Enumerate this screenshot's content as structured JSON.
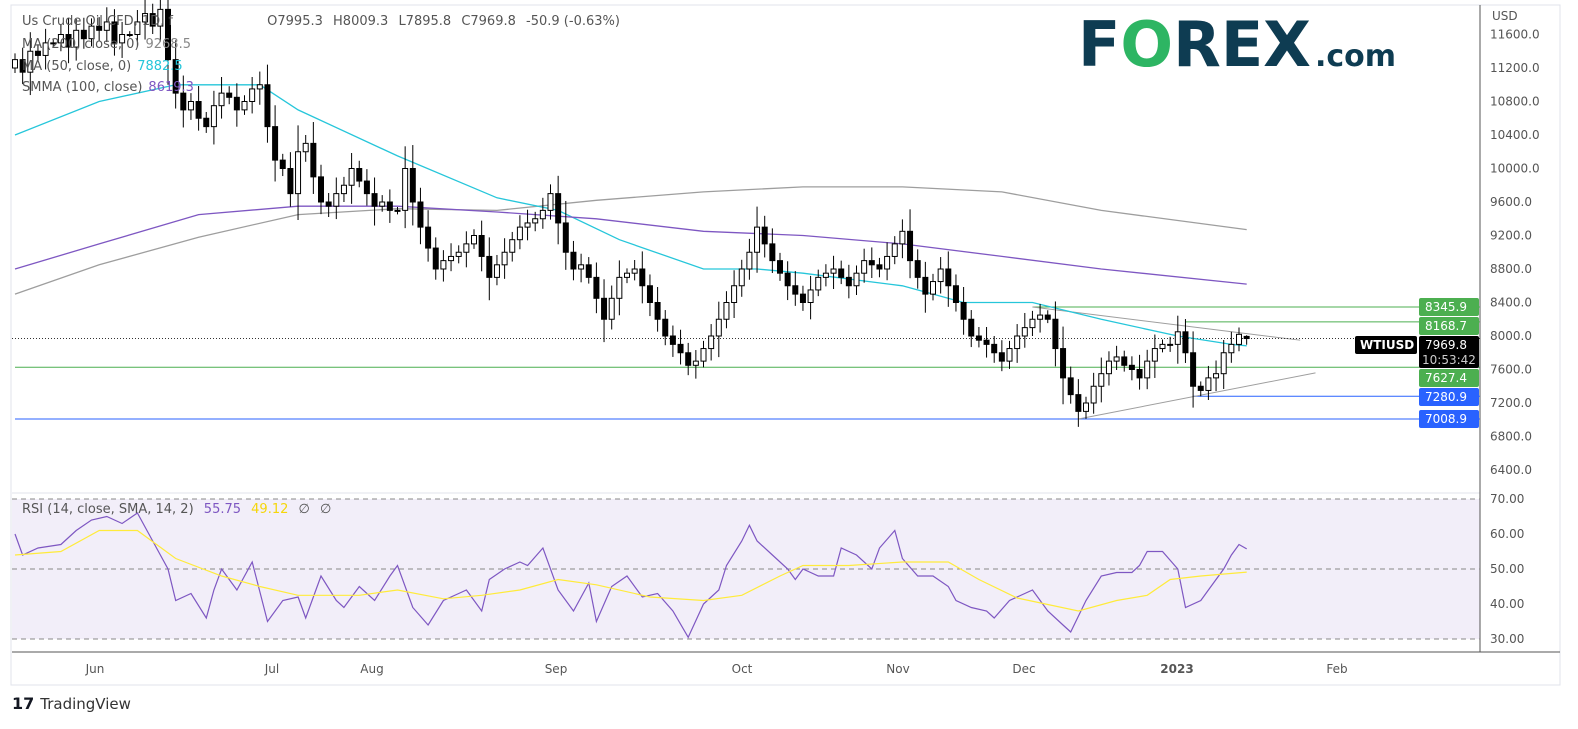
{
  "chart_data": {
    "type": "candlestick",
    "symbol_title": "Us Crude Oil CFD, 1D, f",
    "ohlc_last": {
      "open": "O7995.3",
      "high": "H8009.3",
      "low": "L7895.8",
      "close": "C7969.8",
      "change": "-50.9 (-0.63%)"
    },
    "last_ohlc_values": {
      "open": 7995.3,
      "high": 8009.3,
      "low": 7895.8,
      "close": 7969.8
    },
    "closes": [
      11300,
      11150,
      11400,
      11350,
      11500,
      11500,
      11600,
      11450,
      11650,
      11550,
      11700,
      11650,
      11750,
      11500,
      11600,
      11600,
      11750,
      11850,
      11700,
      11900,
      11300,
      10900,
      10700,
      10800,
      10600,
      10500,
      10750,
      10900,
      10850,
      10700,
      10800,
      10950,
      11000,
      10500,
      10100,
      10000,
      9700,
      10200,
      10300,
      9900,
      9600,
      9550,
      9700,
      9800,
      10000,
      9850,
      9700,
      9550,
      9600,
      9500,
      9500,
      10000,
      9600,
      9300,
      9050,
      8800,
      8900,
      8950,
      9000,
      9100,
      9200,
      8950,
      8700,
      8850,
      9000,
      9150,
      9300,
      9350,
      9400,
      9500,
      9700,
      9350,
      9000,
      8800,
      8850,
      8700,
      8450,
      8200,
      8450,
      8700,
      8750,
      8800,
      8600,
      8400,
      8200,
      8000,
      7900,
      7800,
      7650,
      7700,
      7850,
      8000,
      8200,
      8400,
      8600,
      8800,
      9000,
      9300,
      9100,
      8900,
      8750,
      8600,
      8500,
      8400,
      8550,
      8700,
      8750,
      8800,
      8700,
      8600,
      8750,
      8900,
      8850,
      8800,
      8950,
      9100,
      9250,
      8900,
      8700,
      8500,
      8650,
      8800,
      8600,
      8400,
      8200,
      8000,
      7950,
      7900,
      7800,
      7700,
      7850,
      8000,
      8100,
      8200,
      8250,
      8200,
      7850,
      7500,
      7300,
      7100,
      7200,
      7400,
      7550,
      7700,
      7750,
      7650,
      7600,
      7500,
      7700,
      7850,
      7900,
      7900,
      8050,
      7800,
      7400,
      7350,
      7500,
      7550,
      7800,
      7900,
      8020,
      7970
    ],
    "moving_averages": [
      {
        "name": "MA (200, close, 0)",
        "value": "9268.5",
        "color": "#9e9e9e",
        "points": [
          [
            0,
            8500
          ],
          [
            11,
            8850
          ],
          [
            24,
            9180
          ],
          [
            37,
            9450
          ],
          [
            50,
            9520
          ],
          [
            63,
            9500
          ],
          [
            76,
            9620
          ],
          [
            90,
            9720
          ],
          [
            103,
            9780
          ],
          [
            116,
            9780
          ],
          [
            129,
            9720
          ],
          [
            142,
            9500
          ],
          [
            161,
            9270
          ]
        ]
      },
      {
        "name": "MA (50, close, 0)",
        "value": "7882.5",
        "color": "#26c6da",
        "points": [
          [
            0,
            10400
          ],
          [
            11,
            10800
          ],
          [
            21,
            11000
          ],
          [
            32,
            11000
          ],
          [
            37,
            10700
          ],
          [
            50,
            10150
          ],
          [
            63,
            9650
          ],
          [
            71,
            9500
          ],
          [
            79,
            9150
          ],
          [
            90,
            8800
          ],
          [
            97,
            8800
          ],
          [
            103,
            8750
          ],
          [
            116,
            8600
          ],
          [
            124,
            8400
          ],
          [
            133,
            8400
          ],
          [
            142,
            8200
          ],
          [
            152,
            8000
          ],
          [
            159,
            7900
          ],
          [
            161,
            7882.5
          ]
        ]
      },
      {
        "name": "SMMA (100, close)",
        "value": "8619.3",
        "color": "#7e57c2",
        "points": [
          [
            0,
            8800
          ],
          [
            11,
            9100
          ],
          [
            24,
            9450
          ],
          [
            37,
            9550
          ],
          [
            50,
            9550
          ],
          [
            63,
            9480
          ],
          [
            76,
            9400
          ],
          [
            90,
            9250
          ],
          [
            103,
            9200
          ],
          [
            116,
            9100
          ],
          [
            129,
            8950
          ],
          [
            142,
            8800
          ],
          [
            161,
            8619.3
          ]
        ]
      }
    ],
    "levels": [
      {
        "value": 8345.9,
        "label": "8345.9",
        "color": "#4caf50",
        "from_bar": 133
      },
      {
        "value": 8168.7,
        "label": "8168.7",
        "color": "#4caf50",
        "from_bar": 153
      },
      {
        "value": 7627.4,
        "label": "7627.4",
        "color": "#4caf50",
        "from_bar": 0
      },
      {
        "value": 7280.9,
        "label": "7280.9",
        "color": "#2962ff",
        "from_bar": 154
      },
      {
        "value": 7008.9,
        "label": "7008.9",
        "color": "#2962ff",
        "from_bar": 0
      }
    ],
    "trendlines": [
      {
        "from": [
          133,
          8345.9
        ],
        "to": [
          168,
          7950
        ],
        "color": "#9e9e9e"
      },
      {
        "from": [
          139,
          7008.9
        ],
        "to": [
          170,
          7560
        ],
        "color": "#9e9e9e"
      }
    ],
    "current_price": {
      "symbol": "WTIUSD",
      "value": "7969.8",
      "countdown": "10:53:42",
      "price": 7969.8
    },
    "price_axis": {
      "unit": "USD",
      "ylim": [
        6200,
        12000
      ],
      "ticks": [
        "11600.0",
        "11200.0",
        "10800.0",
        "10400.0",
        "10000.0",
        "9600.0",
        "9200.0",
        "8800.0",
        "8400.0",
        "8000.0",
        "7600.0",
        "7200.0",
        "6800.0",
        "6400.0"
      ]
    },
    "x_ticks": [
      "Jun",
      "Jul",
      "Aug",
      "Sep",
      "Oct",
      "Nov",
      "Dec",
      "2023",
      "Feb"
    ],
    "rsi": {
      "title": "RSI (14, close, SMA, 14, 2)",
      "value": "55.75",
      "sma_value": "49.12",
      "extra1": "∅",
      "extra2": "∅",
      "color": "#7e57c2",
      "sma_color": "#ffeb3b",
      "ylim": [
        30,
        70
      ],
      "ticks": [
        "70.00",
        "60.00",
        "50.00",
        "40.00",
        "30.00"
      ],
      "points": [
        [
          0,
          60
        ],
        [
          1,
          54
        ],
        [
          3,
          56
        ],
        [
          6,
          57
        ],
        [
          8,
          61
        ],
        [
          10,
          64
        ],
        [
          12,
          65
        ],
        [
          14,
          63
        ],
        [
          16,
          66
        ],
        [
          18,
          58
        ],
        [
          20,
          50
        ],
        [
          21,
          41
        ],
        [
          23,
          43
        ],
        [
          25,
          36
        ],
        [
          26,
          44
        ],
        [
          27,
          50
        ],
        [
          29,
          44
        ],
        [
          31,
          52
        ],
        [
          33,
          35
        ],
        [
          35,
          41
        ],
        [
          37,
          42
        ],
        [
          38,
          36
        ],
        [
          40,
          48
        ],
        [
          42,
          41
        ],
        [
          43,
          39
        ],
        [
          45,
          45
        ],
        [
          47,
          41
        ],
        [
          49,
          48
        ],
        [
          50,
          51
        ],
        [
          52,
          39
        ],
        [
          54,
          34
        ],
        [
          56,
          41
        ],
        [
          58,
          43
        ],
        [
          59,
          44
        ],
        [
          61,
          38
        ],
        [
          62,
          47
        ],
        [
          64,
          50
        ],
        [
          66,
          52
        ],
        [
          67,
          51
        ],
        [
          69,
          56
        ],
        [
          71,
          44
        ],
        [
          73,
          38
        ],
        [
          75,
          46
        ],
        [
          76,
          35
        ],
        [
          78,
          45
        ],
        [
          80,
          48
        ],
        [
          82,
          42
        ],
        [
          84,
          43
        ],
        [
          86,
          38
        ],
        [
          88,
          30.5
        ],
        [
          90,
          40
        ],
        [
          92,
          44
        ],
        [
          93,
          51
        ],
        [
          95,
          58
        ],
        [
          96,
          62.5
        ],
        [
          97,
          58
        ],
        [
          99,
          54
        ],
        [
          101,
          50
        ],
        [
          102,
          47
        ],
        [
          103,
          50
        ],
        [
          105,
          48
        ],
        [
          107,
          48
        ],
        [
          108,
          56
        ],
        [
          110,
          54
        ],
        [
          112,
          50
        ],
        [
          113,
          56
        ],
        [
          115,
          61
        ],
        [
          116,
          53
        ],
        [
          118,
          48
        ],
        [
          120,
          48
        ],
        [
          122,
          45
        ],
        [
          123,
          41
        ],
        [
          125,
          39
        ],
        [
          127,
          38
        ],
        [
          128,
          36
        ],
        [
          130,
          41
        ],
        [
          132,
          43
        ],
        [
          133,
          44
        ],
        [
          135,
          38
        ],
        [
          137,
          34
        ],
        [
          138,
          32
        ],
        [
          140,
          41
        ],
        [
          142,
          48
        ],
        [
          144,
          49
        ],
        [
          146,
          49
        ],
        [
          147,
          51
        ],
        [
          148,
          55
        ],
        [
          150,
          55
        ],
        [
          152,
          50
        ],
        [
          153,
          39
        ],
        [
          155,
          41
        ],
        [
          156,
          44
        ],
        [
          158,
          50
        ],
        [
          159,
          54
        ],
        [
          160,
          57
        ],
        [
          161,
          55.75
        ]
      ],
      "sma_points": [
        [
          0,
          54
        ],
        [
          6,
          55
        ],
        [
          11,
          61
        ],
        [
          16,
          61
        ],
        [
          21,
          53
        ],
        [
          27,
          48
        ],
        [
          32,
          45
        ],
        [
          37,
          42.5
        ],
        [
          45,
          42.5
        ],
        [
          50,
          44
        ],
        [
          56,
          41.5
        ],
        [
          61,
          42.5
        ],
        [
          66,
          44
        ],
        [
          71,
          47
        ],
        [
          76,
          45.5
        ],
        [
          83,
          42
        ],
        [
          90,
          41
        ],
        [
          95,
          42.5
        ],
        [
          100,
          48
        ],
        [
          103,
          51
        ],
        [
          109,
          51
        ],
        [
          116,
          52
        ],
        [
          122,
          52
        ],
        [
          126,
          47
        ],
        [
          131,
          41.7
        ],
        [
          139,
          38
        ],
        [
          144,
          41
        ],
        [
          148,
          42.5
        ],
        [
          151,
          47
        ],
        [
          155,
          48
        ],
        [
          161,
          49.12
        ]
      ]
    }
  },
  "branding": {
    "logo_text_left": "F",
    "logo_o": "O",
    "logo_text_right": "REX",
    "logo_suffix": ".com",
    "footer": "TradingView"
  }
}
